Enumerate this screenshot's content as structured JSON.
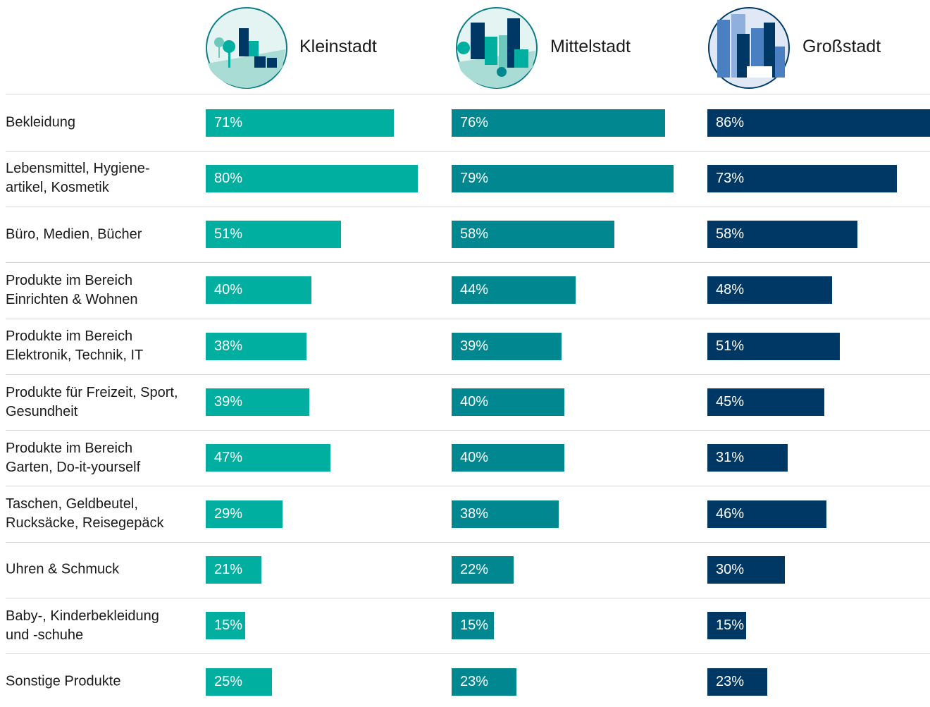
{
  "chart_data": {
    "type": "bar",
    "categories": [
      "Bekleidung",
      "Lebensmittel, Hygiene-artikel, Kosmetik",
      "Büro, Medien, Bücher",
      "Produkte im Bereich Einrichten & Wohnen",
      "Produkte im Bereich Elektronik, Technik, IT",
      "Produkte für Freizeit, Sport, Gesundheit",
      "Produkte im Bereich Garten, Do-it-yourself",
      "Taschen, Geldbeutel, Rucksäcke, Reisegepäck",
      "Uhren & Schmuck",
      "Baby-, Kinderbekleidung und -schuhe",
      "Sonstige Produkte"
    ],
    "series": [
      {
        "name": "Kleinstadt",
        "color": "#00afa0",
        "values": [
          71,
          80,
          51,
          40,
          38,
          39,
          47,
          29,
          21,
          15,
          25
        ],
        "value_labels": [
          "71%",
          "80%",
          "51%",
          "40%",
          "38%",
          "39%",
          "47%",
          "29%",
          "21%",
          "15%",
          "25%"
        ]
      },
      {
        "name": "Mittelstadt",
        "color": "#00878f",
        "values": [
          76,
          79,
          58,
          44,
          39,
          40,
          40,
          38,
          22,
          15,
          23
        ],
        "value_labels": [
          "76%",
          "79%",
          "58%",
          "44%",
          "39%",
          "40%",
          "40%",
          "38%",
          "22%",
          "15%",
          "23%"
        ]
      },
      {
        "name": "Großstadt",
        "color": "#003865",
        "values": [
          86,
          73,
          58,
          48,
          51,
          45,
          31,
          46,
          30,
          15,
          23
        ],
        "value_labels": [
          "86%",
          "73%",
          "58%",
          "48%",
          "51%",
          "45%",
          "31%",
          "46%",
          "30%",
          "15%",
          "23%"
        ]
      }
    ]
  }
}
